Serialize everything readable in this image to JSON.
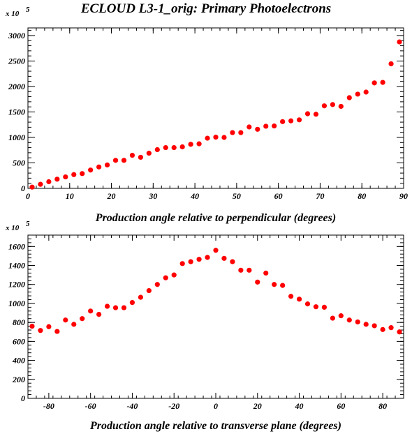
{
  "title": "ECLOUD L3-1_orig: Primary Photoelectrons",
  "chart_data": [
    {
      "type": "scatter",
      "xlabel": "Production angle relative to perpendicular (degrees)",
      "ylabel": "",
      "y_multiplier_label": "x 10",
      "y_multiplier_exp": "5",
      "xlim": [
        0,
        90
      ],
      "ylim": [
        0,
        3150
      ],
      "xticks": [
        0,
        10,
        20,
        30,
        40,
        50,
        60,
        70,
        80,
        90
      ],
      "yticks": [
        0,
        500,
        1000,
        1500,
        2000,
        2500,
        3000
      ],
      "marker_color": "#ff0000",
      "x": [
        1,
        3,
        5,
        7,
        9,
        11,
        13,
        15,
        17,
        19,
        21,
        23,
        25,
        27,
        29,
        31,
        33,
        35,
        37,
        39,
        41,
        43,
        45,
        47,
        49,
        51,
        53,
        55,
        57,
        59,
        61,
        63,
        65,
        67,
        69,
        71,
        73,
        75,
        77,
        79,
        81,
        83,
        85,
        87,
        89
      ],
      "y": [
        25,
        80,
        130,
        180,
        225,
        270,
        290,
        360,
        420,
        460,
        550,
        550,
        650,
        610,
        690,
        760,
        800,
        800,
        815,
        865,
        875,
        985,
        1005,
        1000,
        1095,
        1095,
        1205,
        1160,
        1220,
        1225,
        1310,
        1325,
        1345,
        1465,
        1455,
        1620,
        1645,
        1610,
        1780,
        1850,
        1890,
        2070,
        2080,
        2445,
        2875
      ]
    },
    {
      "type": "scatter",
      "xlabel": "Production angle relative to transverse plane (degrees)",
      "ylabel": "",
      "y_multiplier_label": "x 10",
      "y_multiplier_exp": "5",
      "xlim": [
        -90,
        90
      ],
      "ylim": [
        0,
        1720
      ],
      "xticks": [
        -80,
        -60,
        -40,
        -20,
        0,
        20,
        40,
        60,
        80
      ],
      "yticks": [
        0,
        200,
        400,
        600,
        800,
        1000,
        1200,
        1400,
        1600
      ],
      "marker_color": "#ff0000",
      "x": [
        -88,
        -84,
        -80,
        -76,
        -72,
        -68,
        -64,
        -60,
        -56,
        -52,
        -48,
        -44,
        -40,
        -36,
        -32,
        -28,
        -24,
        -20,
        -16,
        -12,
        -8,
        -4,
        0,
        4,
        8,
        12,
        16,
        20,
        24,
        28,
        32,
        36,
        40,
        44,
        48,
        52,
        56,
        60,
        64,
        68,
        72,
        76,
        80,
        84,
        88
      ],
      "y": [
        760,
        715,
        755,
        705,
        825,
        780,
        840,
        920,
        885,
        970,
        955,
        955,
        1010,
        1065,
        1135,
        1200,
        1270,
        1300,
        1420,
        1440,
        1465,
        1485,
        1560,
        1475,
        1440,
        1350,
        1350,
        1225,
        1320,
        1200,
        1190,
        1075,
        1045,
        995,
        965,
        960,
        845,
        870,
        825,
        805,
        780,
        765,
        725,
        745,
        700
      ]
    }
  ]
}
